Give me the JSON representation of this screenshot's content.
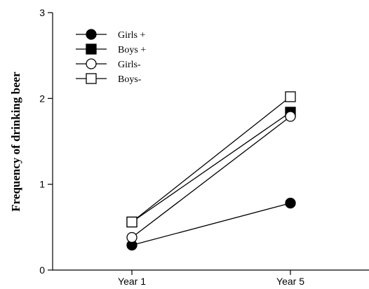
{
  "chart_data": {
    "type": "line",
    "title": "",
    "xlabel": "",
    "ylabel": "Frequency of drinking beer",
    "categories": [
      "Year 1",
      "Year 5"
    ],
    "ylim": [
      0,
      3
    ],
    "yticks": [
      0,
      1,
      2,
      3
    ],
    "grid": false,
    "legend_position": "top-left",
    "series": [
      {
        "name": "Girls +",
        "marker": "circle-filled",
        "values": [
          0.29,
          0.78
        ]
      },
      {
        "name": "Boys +",
        "marker": "square-filled",
        "values": [
          0.56,
          1.84
        ]
      },
      {
        "name": "Girls-",
        "marker": "circle-open",
        "values": [
          0.38,
          1.79
        ]
      },
      {
        "name": "Boys-",
        "marker": "square-open",
        "values": [
          0.56,
          2.02
        ]
      }
    ]
  }
}
